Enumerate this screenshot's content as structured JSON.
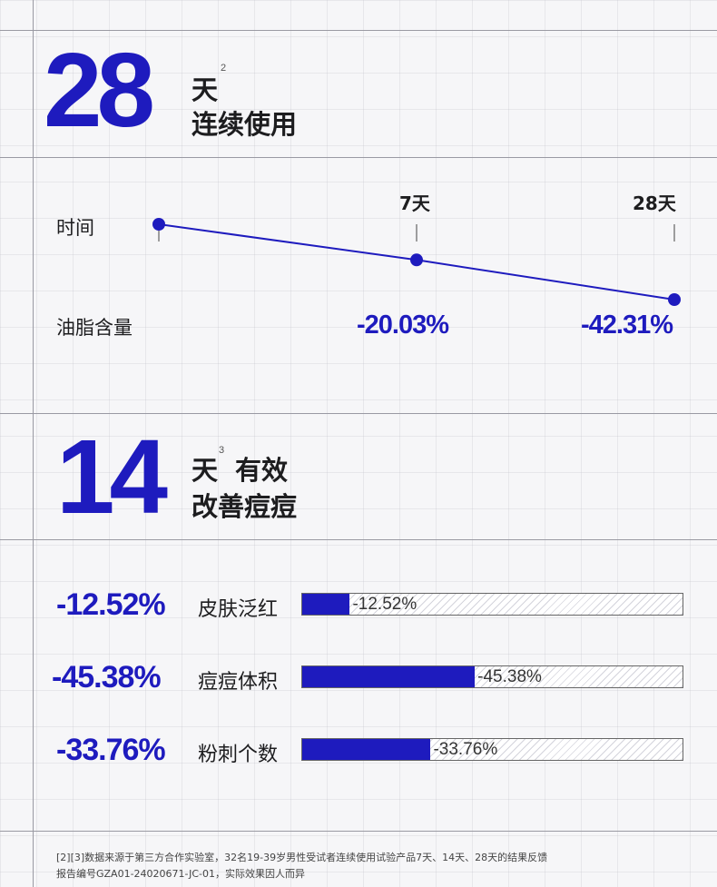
{
  "section1": {
    "number": "28",
    "unit": "天",
    "sup": "2",
    "caption": "连续使用"
  },
  "section2": {
    "number": "14",
    "unit": "天",
    "sup": "3",
    "suffix": "有效",
    "caption": "改善痘痘"
  },
  "chart_data": [
    {
      "type": "line",
      "row_labels": {
        "time": "时间",
        "metric": "油脂含量"
      },
      "x": [
        "0",
        "7天",
        "28天"
      ],
      "tick_labels": [
        "",
        "7天",
        "28天"
      ],
      "series": [
        {
          "values": [
            0,
            -20.03,
            -42.31
          ]
        }
      ],
      "value_labels": [
        "",
        "-20.03%",
        "-42.31%"
      ],
      "colors": {
        "line": "#1e1bbe"
      }
    },
    {
      "type": "bar",
      "orientation": "horizontal",
      "categories": [
        "皮肤泛红",
        "痘痘体积",
        "粉刺个数"
      ],
      "values": [
        -12.52,
        -45.38,
        -33.76
      ],
      "value_labels": [
        "-12.52%",
        "-45.38%",
        "-33.76%"
      ],
      "xlim": [
        0,
        100
      ],
      "colors": {
        "fill": "#1e1bbe"
      }
    }
  ],
  "footnote": {
    "line1": "[2][3]数据来源于第三方合作实验室，32名19-39岁男性受试者连续使用试验产品7天、14天、28天的结果反馈",
    "line2": "报告编号GZA01-24020671-JC-01，实际效果因人而异"
  }
}
